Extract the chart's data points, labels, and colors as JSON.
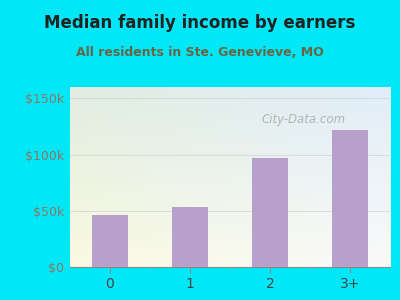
{
  "title": "Median family income by earners",
  "subtitle": "All residents in Ste. Genevieve, MO",
  "categories": [
    "0",
    "1",
    "2",
    "3+"
  ],
  "values": [
    46000,
    53000,
    97000,
    122000
  ],
  "bar_color": "#b8a0cc",
  "yticks": [
    0,
    50000,
    100000,
    150000
  ],
  "ytick_labels": [
    "$0",
    "$50k",
    "$100k",
    "$150k"
  ],
  "ylim": [
    0,
    160000
  ],
  "bg_outer": "#00e8f8",
  "bg_plot_top_left": "#e8f5e8",
  "bg_plot_bottom_right": "#e8f0f8",
  "title_color": "#222222",
  "subtitle_color": "#666644",
  "title_fontsize": 12,
  "subtitle_fontsize": 9,
  "ytick_color": "#887766",
  "xtick_color": "#444444",
  "watermark_text": "City-Data.com",
  "watermark_color": "#aaaaaa"
}
